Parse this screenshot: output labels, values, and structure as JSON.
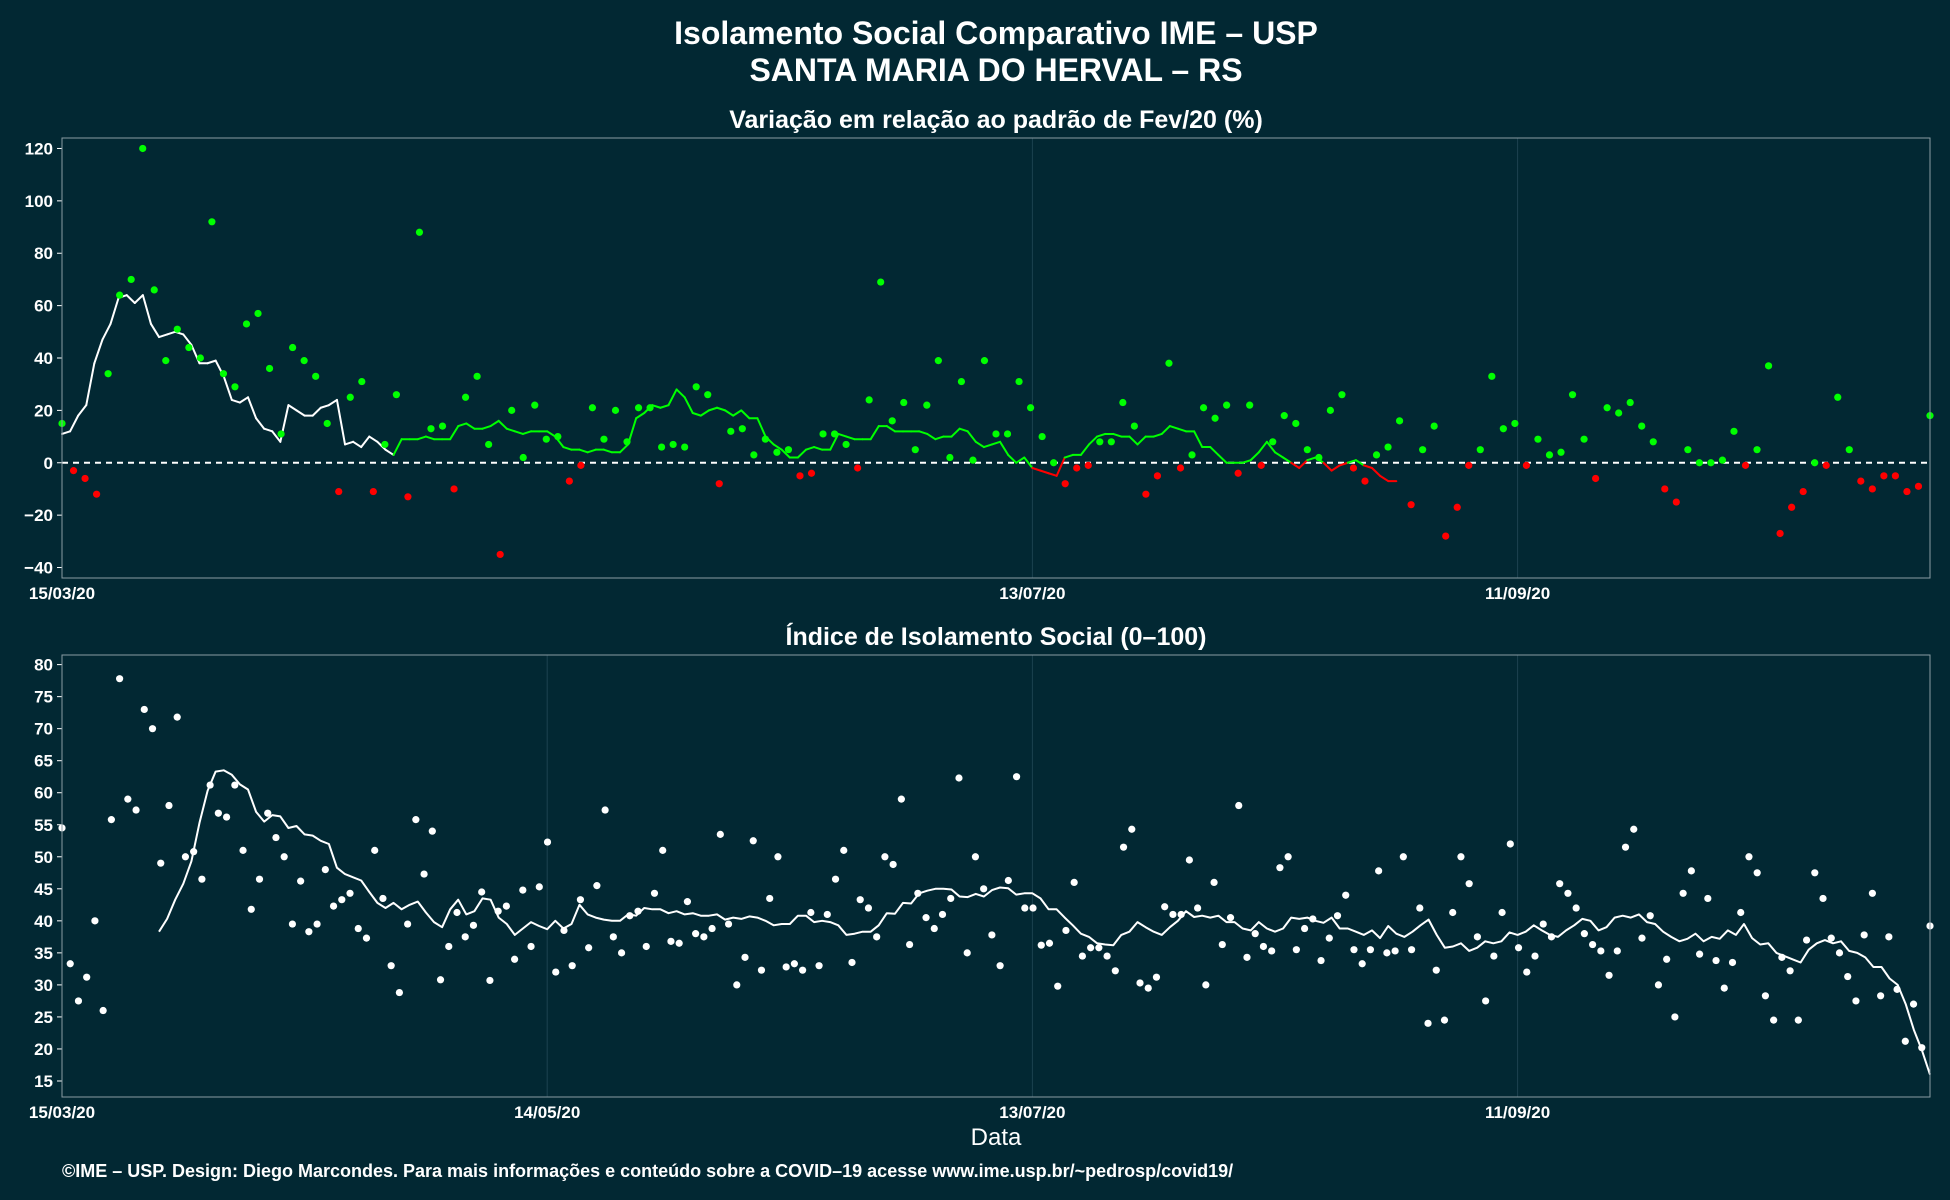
{
  "title_line1": "Isolamento Social Comparativo IME – USP",
  "title_line2": "SANTA MARIA DO HERVAL – RS",
  "xlabel": "Data",
  "footer": "©IME – USP. Design: Diego Marcondes. Para mais informações e conteúdo sobre a COVID–19 acesse www.ime.usp.br/~pedrosp/covid19/",
  "colors": {
    "background": "#022833",
    "positive": "#00ff00",
    "negative": "#ff0000",
    "index": "#ffffff"
  },
  "chart_data": [
    {
      "type": "scatter",
      "title": "Variação em relação ao padrão de Fev/20 (%)",
      "x_start": "15/03/20",
      "x_end": "01/11/20",
      "xticks": [
        "15/03/20",
        "13/07/20",
        "11/09/20"
      ],
      "ylim": [
        -44,
        124
      ],
      "yticks": [
        -40,
        -20,
        0,
        20,
        40,
        60,
        80,
        100,
        120
      ],
      "reference_line": 0,
      "series": [
        {
          "kind": "daily-points",
          "values": [
            15,
            -3,
            -6,
            -12,
            34,
            64,
            70,
            120,
            66,
            39,
            51,
            44,
            40,
            92,
            34,
            29,
            53,
            57,
            36,
            11,
            44,
            39,
            33,
            15,
            -11,
            25,
            31,
            -11,
            7,
            26,
            -13,
            88,
            13,
            14,
            -10,
            25,
            33,
            7,
            -35,
            20,
            2,
            22,
            9,
            10,
            -7,
            -1,
            21,
            9,
            20,
            8,
            21,
            21,
            6,
            7,
            6,
            29,
            26,
            -8,
            12,
            13,
            3,
            9,
            4,
            5,
            -5,
            -4,
            11,
            11,
            7,
            -2,
            24,
            69,
            16,
            23,
            5,
            22,
            39,
            2,
            31,
            1,
            39,
            11,
            11,
            31,
            21,
            10,
            0,
            -8,
            -2,
            -1,
            8,
            8,
            23,
            14,
            -12,
            -5,
            38,
            -2,
            3,
            21,
            17,
            22,
            -4,
            22,
            -1,
            8,
            18,
            15,
            5,
            2,
            20,
            26,
            -2,
            -7,
            3,
            6,
            16,
            -16,
            5,
            14,
            -28,
            -17,
            -1,
            5,
            33,
            13,
            15,
            -1,
            9,
            3,
            4,
            26,
            9,
            -6,
            21,
            19,
            23,
            14,
            8,
            -10,
            -15,
            5,
            0,
            0,
            1,
            12,
            -1,
            5,
            37,
            -27,
            -17,
            -11,
            0,
            -1,
            25,
            5,
            -7,
            -10,
            -5,
            -5,
            -11,
            -9,
            18
          ]
        },
        {
          "kind": "moving-average",
          "values": [
            11,
            12,
            18,
            22,
            38,
            47,
            53,
            63,
            64,
            61,
            64,
            53,
            48,
            49,
            50,
            49,
            45,
            38,
            38,
            39,
            33,
            24,
            23,
            25,
            17,
            13,
            12,
            8,
            22,
            20,
            18,
            18,
            21,
            22,
            24,
            7,
            8,
            6,
            10,
            8,
            5,
            3,
            9,
            9,
            9,
            10,
            9,
            9,
            9,
            14,
            15,
            13,
            13,
            14,
            16,
            13,
            12,
            11,
            12,
            12,
            12,
            10,
            6,
            5,
            5,
            4,
            5,
            5,
            4,
            4,
            7,
            17,
            19,
            22,
            21,
            22,
            28,
            25,
            19,
            18,
            20,
            21,
            20,
            18,
            20,
            17,
            17,
            10,
            7,
            5,
            2,
            2,
            5,
            6,
            5,
            5,
            11,
            10,
            9,
            9,
            9,
            14,
            14,
            12,
            12,
            12,
            12,
            11,
            9,
            10,
            10,
            13,
            12,
            8,
            6,
            7,
            8,
            3,
            0,
            2,
            -2,
            -3,
            -4,
            -5,
            2,
            3,
            3,
            7,
            10,
            11,
            11,
            10,
            10,
            7,
            10,
            10,
            11,
            14,
            13,
            12,
            12,
            6,
            6,
            3,
            0,
            0,
            0,
            1,
            4,
            8,
            4,
            2,
            0,
            -2,
            1,
            2,
            0,
            -3,
            -1,
            0,
            1,
            -1,
            -2,
            -5,
            -7,
            -7
          ]
        }
      ]
    },
    {
      "type": "scatter",
      "title": "Índice de Isolamento Social (0–100)",
      "x_start": "15/03/20",
      "x_end": "01/11/20",
      "xticks": [
        "15/03/20",
        "14/05/20",
        "13/07/20",
        "11/09/20"
      ],
      "ylim": [
        12.5,
        81.5
      ],
      "yticks": [
        15,
        20,
        25,
        30,
        35,
        40,
        45,
        50,
        55,
        60,
        65,
        70,
        75,
        80
      ],
      "series": [
        {
          "kind": "daily-points",
          "values": [
            54.5,
            33.3,
            27.5,
            31.2,
            40,
            26,
            55.8,
            77.8,
            59,
            57.3,
            73,
            70,
            49,
            58,
            71.8,
            50,
            50.8,
            46.5,
            61.2,
            56.8,
            56.2,
            61.2,
            51,
            41.8,
            46.5,
            56.8,
            53,
            50,
            39.5,
            46.2,
            38.3,
            39.5,
            48,
            42.3,
            43.3,
            44.3,
            38.8,
            37.3,
            51,
            43.5,
            33,
            28.8,
            39.5,
            55.8,
            47.3,
            54,
            30.8,
            36,
            41.3,
            37.5,
            39.3,
            44.5,
            30.7,
            41.5,
            42.3,
            34,
            44.8,
            36,
            45.3,
            52.3,
            32,
            38.5,
            33,
            43.3,
            35.8,
            45.5,
            57.3,
            37.5,
            35,
            40.8,
            41.5,
            36,
            44.3,
            51,
            36.8,
            36.5,
            43,
            38,
            37.5,
            38.8,
            53.5,
            39.5,
            30,
            34.3,
            52.5,
            32.3,
            43.5,
            50,
            32.8,
            33.3,
            32.3,
            41.3,
            33,
            41,
            46.5,
            51,
            33.5,
            43.3,
            42,
            37.5,
            50,
            48.8,
            59,
            36.3,
            44.3,
            40.5,
            38.8,
            41,
            43.5,
            62.3,
            35,
            50,
            45,
            37.8,
            33,
            46.3,
            62.5,
            42,
            42,
            36.2,
            36.5,
            29.8,
            38.5,
            46,
            34.5,
            35.8,
            35.8,
            34.5,
            32.2,
            51.5,
            54.3,
            30.3,
            29.5,
            31.2,
            42.2,
            41,
            41,
            49.5,
            42,
            30,
            46,
            36.3,
            40.5,
            58,
            34.3,
            38,
            36,
            35.3,
            48.3,
            50,
            35.5,
            38.8,
            40.3,
            33.8,
            37.3,
            40.8,
            44,
            35.5,
            33.3,
            35.5,
            47.8,
            35,
            35.3,
            50,
            35.5,
            42,
            24,
            32.3,
            24.5,
            41.3,
            50,
            45.8,
            37.5,
            27.5,
            34.5,
            41.3,
            52,
            35.8,
            32,
            34.5,
            39.5,
            37.5,
            45.8,
            44.3,
            42,
            38,
            36.3,
            35.3,
            31.5,
            35.3,
            51.5,
            54.3,
            37.3,
            40.8,
            30,
            34,
            25,
            44.3,
            47.8,
            34.8,
            43.5,
            33.8,
            29.5,
            33.5,
            41.3,
            50,
            47.5,
            28.3,
            24.5,
            34.3,
            32.2,
            24.5,
            37,
            47.5,
            43.5,
            37.3,
            35,
            31.3,
            27.5,
            37.8,
            44.3,
            28.3,
            37.5,
            29.3,
            21.2,
            27,
            20.2,
            39.2
          ]
        },
        {
          "kind": "moving-average",
          "values": [
            38.3,
            40.3,
            43.3,
            45.8,
            49.3,
            55.3,
            60.3,
            63.3,
            63.5,
            62.8,
            61.3,
            60.5,
            57,
            55.5,
            56.5,
            56.3,
            54.5,
            54.8,
            53.5,
            53.3,
            52.5,
            52,
            48.3,
            47.3,
            46.8,
            46.3,
            44.5,
            42.8,
            42,
            42.8,
            41.8,
            42.5,
            43,
            41.3,
            39.8,
            39,
            41.8,
            43.3,
            41,
            41.5,
            43.5,
            43.3,
            40.5,
            39.5,
            37.8,
            38.8,
            39.8,
            39.2,
            38.7,
            40,
            38.8,
            39.5,
            42.5,
            41,
            40.5,
            40.2,
            40,
            40,
            41,
            40.8,
            42,
            41.8,
            41.8,
            41.2,
            41.5,
            41,
            41.2,
            40.8,
            40.8,
            41,
            40.2,
            40.5,
            40.3,
            40.7,
            40.5,
            40,
            39.3,
            39.5,
            39.5,
            40.8,
            40.8,
            39.8,
            40,
            39.8,
            39.3,
            37.8,
            38,
            38.3,
            38.3,
            39.3,
            41.2,
            41.1,
            42.8,
            42.7,
            44.3,
            44.7,
            45,
            45,
            44.9,
            43.8,
            43.7,
            44.2,
            43.8,
            44.8,
            45.2,
            45.1,
            44.1,
            44.3,
            44.3,
            43.5,
            41.8,
            41.8,
            40.5,
            39.3,
            38,
            37.5,
            36.5,
            36.3,
            36.2,
            37.8,
            38.3,
            39.8,
            39,
            38.3,
            37.8,
            39,
            40,
            41.5,
            40.6,
            40.8,
            40.5,
            40.8,
            39.8,
            39.8,
            38.8,
            38.5,
            39.8,
            38.8,
            38.3,
            38.8,
            40.5,
            40.3,
            40.5,
            40,
            39.7,
            40.5,
            38.8,
            38.8,
            38.3,
            37.8,
            38.5,
            37.3,
            39.2,
            38,
            37.5,
            38.3,
            39.3,
            40.2,
            37.8,
            35.8,
            36,
            36.5,
            35.3,
            35.8,
            36.8,
            36.5,
            36.8,
            38.2,
            37.8,
            38.3,
            39.3,
            38.5,
            37.8,
            37.5,
            38.5,
            39.3,
            40.3,
            40,
            38.5,
            39,
            40.5,
            40.8,
            40.5,
            41,
            39.8,
            39.5,
            38.3,
            37.5,
            36.8,
            37.2,
            38,
            36.8,
            37.5,
            37.2,
            38.5,
            37.8,
            39.5,
            37.3,
            36.3,
            36.5,
            35,
            34.5,
            34,
            33.5,
            35.5,
            36.5,
            37,
            36.5,
            36.8,
            35.3,
            35,
            34.3,
            32.8,
            32.8,
            31,
            30,
            27,
            23,
            19.8,
            16
          ]
        }
      ]
    }
  ]
}
